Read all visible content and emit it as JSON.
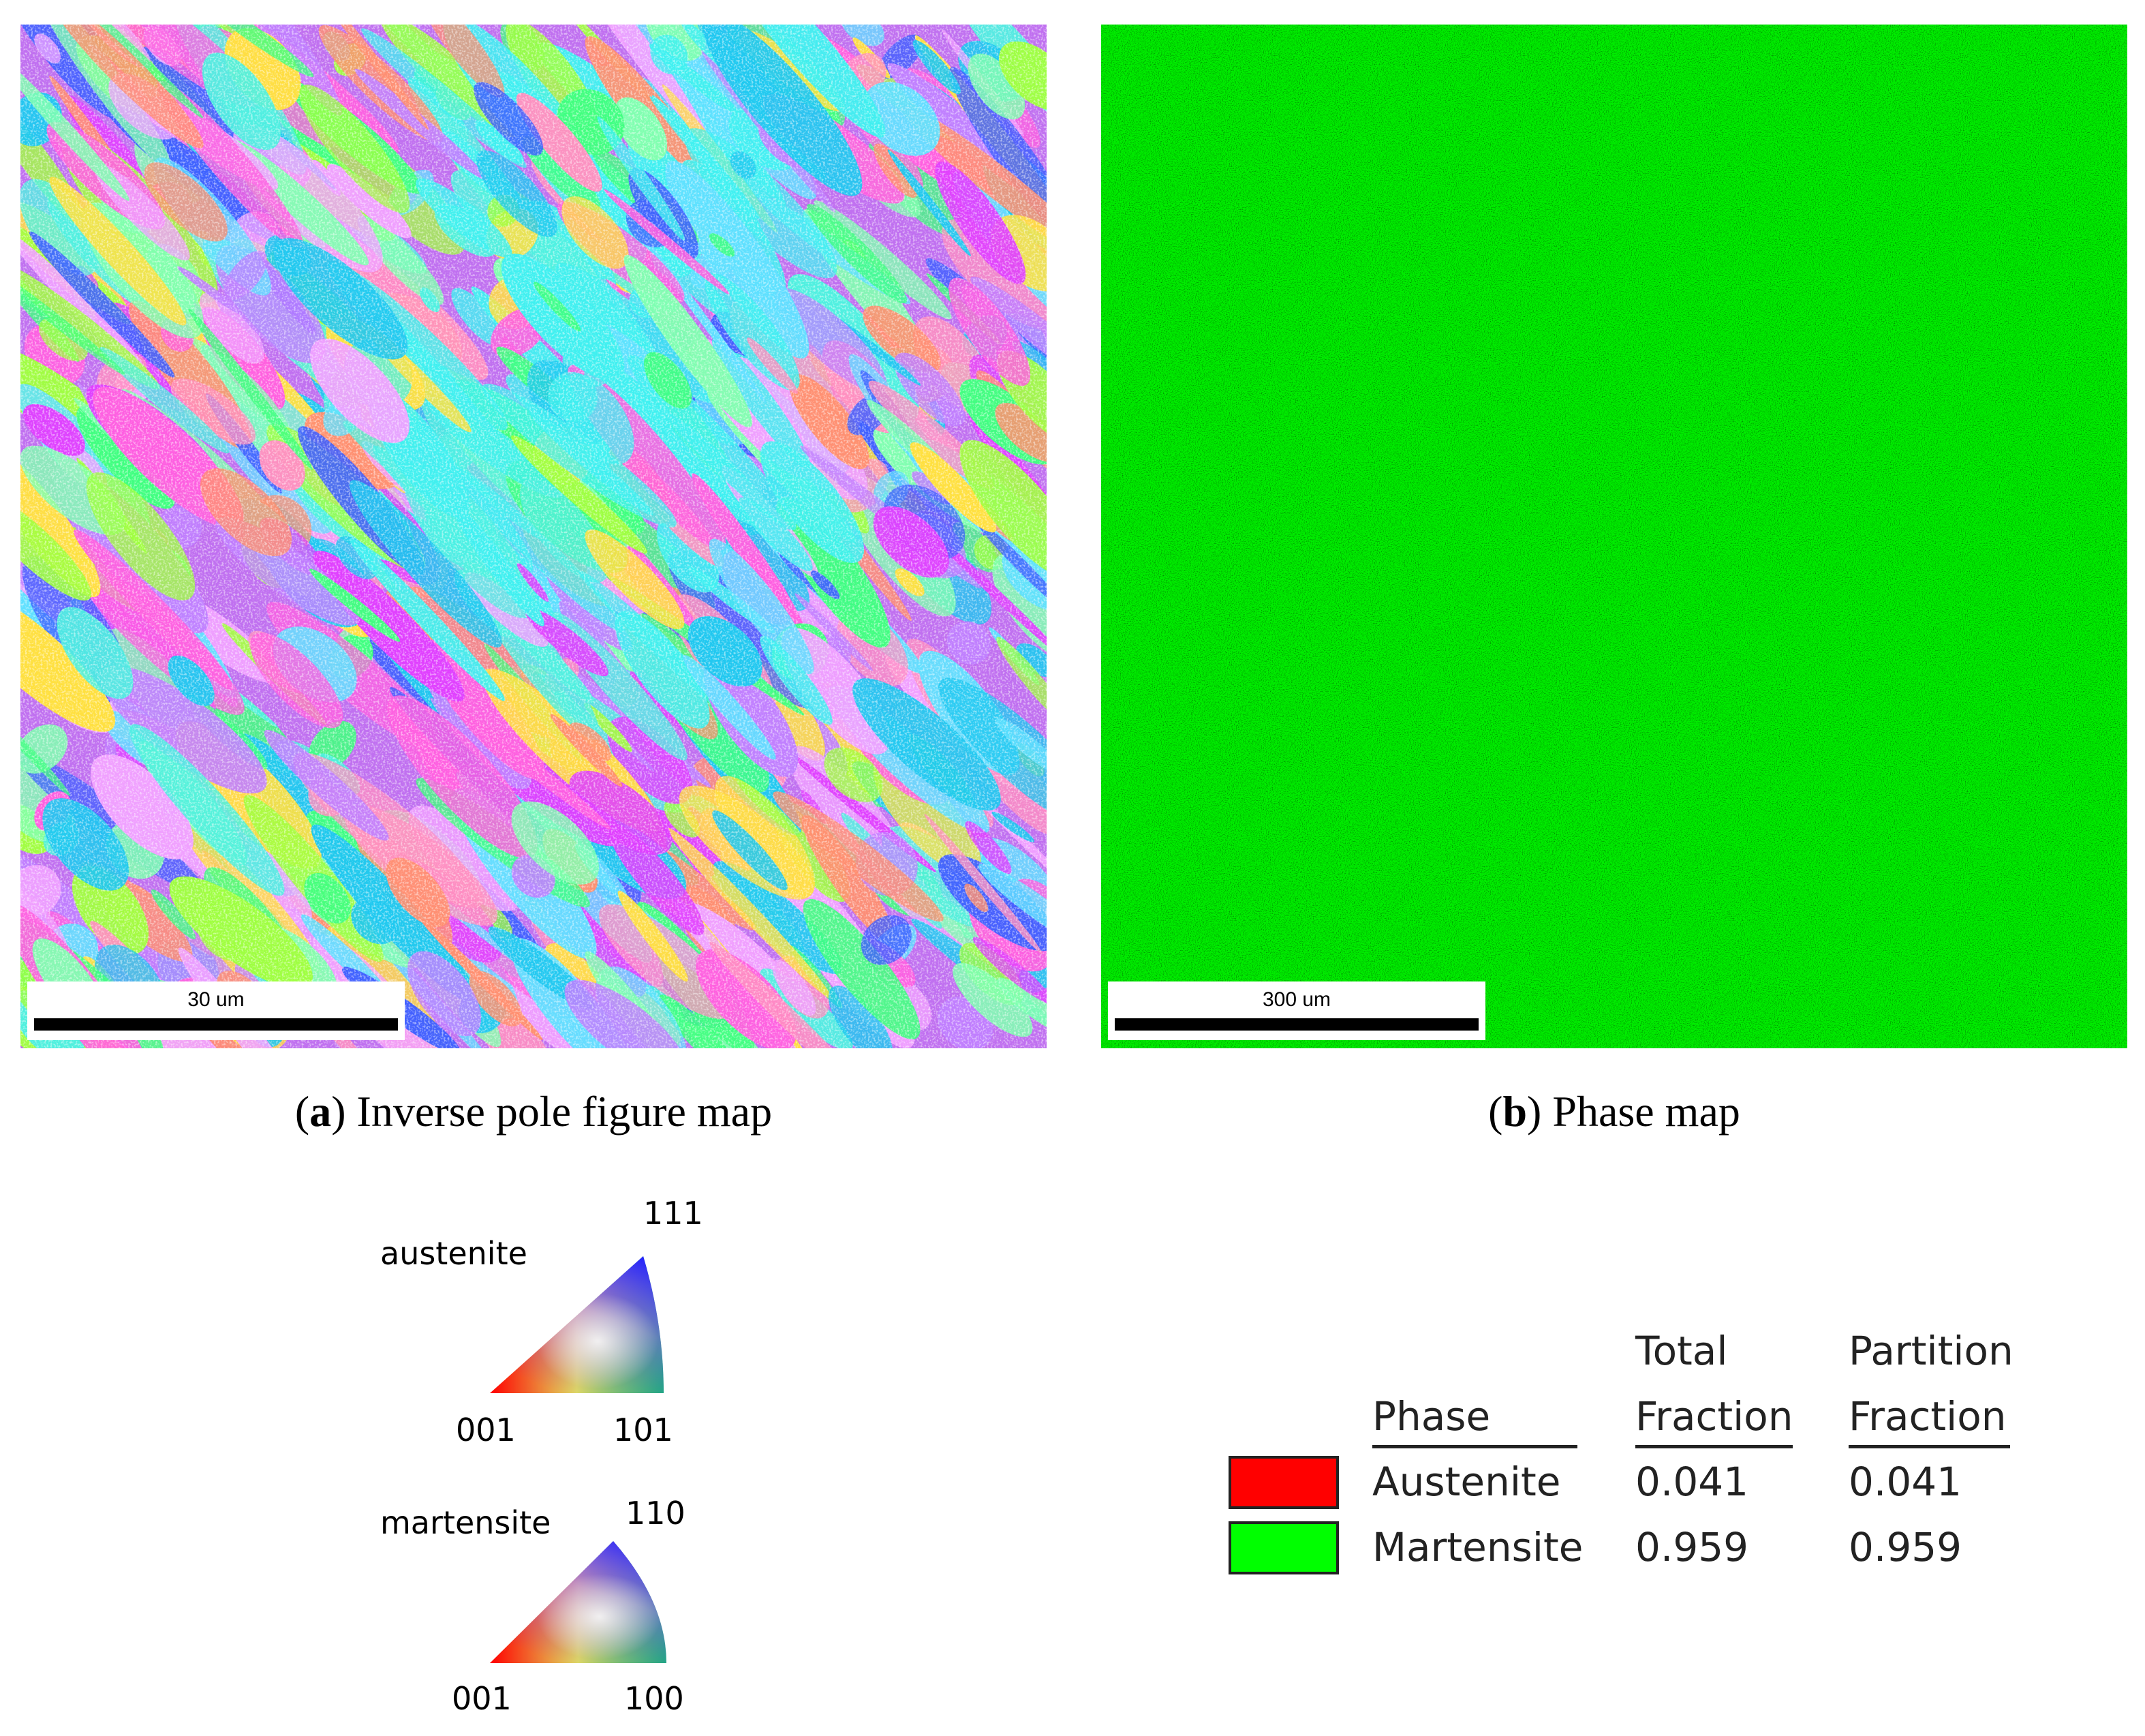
{
  "panels": [
    {
      "caption": {
        "open": "(",
        "label": "a",
        "text": ") Inverse pole figure map"
      },
      "scale_bar": "30 um"
    },
    {
      "caption": {
        "open": "(",
        "label": "b",
        "text": ") Phase map"
      },
      "scale_bar": "300 um"
    }
  ],
  "ipf_legend": [
    {
      "phase": "austenite",
      "top": "111",
      "left": "001",
      "right": "101"
    },
    {
      "phase": "martensite",
      "top": "110",
      "left": "001",
      "right": "100"
    }
  ],
  "phase_table": {
    "columns": [
      {
        "lines": [
          "Phase"
        ]
      },
      {
        "lines": [
          "Total",
          "Fraction"
        ]
      },
      {
        "lines": [
          "Partition",
          "Fraction"
        ]
      }
    ],
    "rows": [
      {
        "color": "#ff0000",
        "phase": "Austenite",
        "total": 0.041,
        "partition": 0.041
      },
      {
        "color": "#00ff00",
        "phase": "Martensite",
        "total": 0.959,
        "partition": 0.959
      }
    ]
  }
}
